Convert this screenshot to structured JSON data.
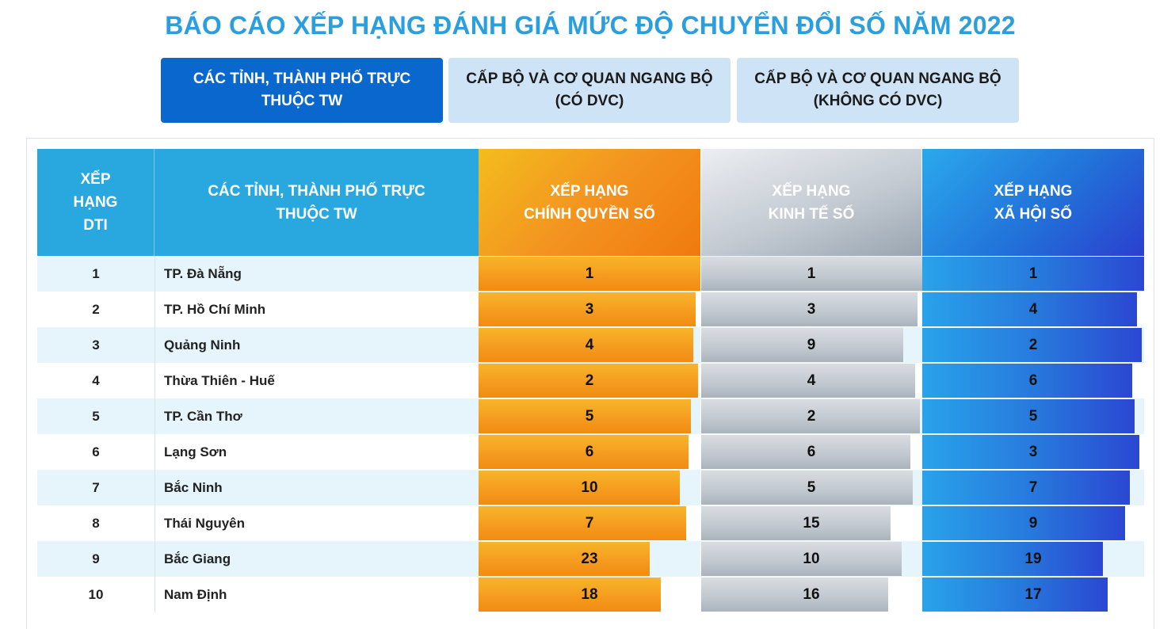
{
  "page": {
    "title": "BÁO CÁO XẾP HẠNG ĐÁNH GIÁ MỨC ĐỘ CHUYỂN ĐỔI SỐ NĂM 2022"
  },
  "tabs": [
    {
      "line1": "CÁC TỈNH, THÀNH PHỐ TRỰC",
      "line2": "THUỘC TW",
      "active": true
    },
    {
      "line1": "CẤP BỘ VÀ CƠ QUAN NGANG BỘ",
      "line2": "(CÓ DVC)",
      "active": false
    },
    {
      "line1": "CẤP BỘ VÀ CƠ QUAN NGANG BỘ",
      "line2": "(KHÔNG CÓ DVC)",
      "active": false
    }
  ],
  "table": {
    "headers": {
      "rank": [
        "XẾP",
        "HẠNG",
        "DTI"
      ],
      "name": [
        "CÁC TỈNH, THÀNH PHỐ TRỰC",
        "THUỘC TW"
      ],
      "chinh_quyen_so": [
        "XẾP HẠNG",
        "CHÍNH QUYỀN SỐ"
      ],
      "kinh_te_so": [
        "XẾP HẠNG",
        "KINH TẾ SỐ"
      ],
      "xa_hoi_so": [
        "XẾP HẠNG",
        "XÃ HỘI SỐ"
      ]
    },
    "colors": {
      "header_blue": "#29a8e0",
      "chinh_quyen_so": "#f39420",
      "kinh_te_so": "#c0c7cf",
      "xa_hoi_so": "#2777dc",
      "active_tab": "#0a67cd",
      "inactive_tab": "#cfe3f6"
    },
    "rows": [
      {
        "rank": "1",
        "name": "TP. Đà Nẵng",
        "cq": "1",
        "kt": "1",
        "xh": "1",
        "cq_fill": 1.0,
        "kt_fill": 1.0,
        "xh_fill": 1.0
      },
      {
        "rank": "2",
        "name": "TP. Hồ Chí Minh",
        "cq": "3",
        "kt": "3",
        "xh": "4",
        "cq_fill": 0.979,
        "kt_fill": 0.979,
        "xh_fill": 0.968
      },
      {
        "rank": "3",
        "name": "Quảng Ninh",
        "cq": "4",
        "kt": "9",
        "xh": "2",
        "cq_fill": 0.968,
        "kt_fill": 0.914,
        "xh_fill": 0.989
      },
      {
        "rank": "4",
        "name": "Thừa Thiên - Huế",
        "cq": "2",
        "kt": "4",
        "xh": "6",
        "cq_fill": 0.989,
        "kt_fill": 0.968,
        "xh_fill": 0.946
      },
      {
        "rank": "5",
        "name": "TP. Cần Thơ",
        "cq": "5",
        "kt": "2",
        "xh": "5",
        "cq_fill": 0.957,
        "kt_fill": 0.989,
        "xh_fill": 0.957
      },
      {
        "rank": "6",
        "name": "Lạng Sơn",
        "cq": "6",
        "kt": "6",
        "xh": "3",
        "cq_fill": 0.946,
        "kt_fill": 0.946,
        "xh_fill": 0.979
      },
      {
        "rank": "7",
        "name": "Bắc Ninh",
        "cq": "10",
        "kt": "5",
        "xh": "7",
        "cq_fill": 0.907,
        "kt_fill": 0.957,
        "xh_fill": 0.936
      },
      {
        "rank": "8",
        "name": "Thái Nguyên",
        "cq": "7",
        "kt": "15",
        "xh": "9",
        "cq_fill": 0.936,
        "kt_fill": 0.857,
        "xh_fill": 0.914
      },
      {
        "rank": "9",
        "name": "Bắc Giang",
        "cq": "23",
        "kt": "10",
        "xh": "19",
        "cq_fill": 0.771,
        "kt_fill": 0.907,
        "xh_fill": 0.814
      },
      {
        "rank": "10",
        "name": "Nam Định",
        "cq": "18",
        "kt": "16",
        "xh": "17",
        "cq_fill": 0.821,
        "kt_fill": 0.846,
        "xh_fill": 0.836
      }
    ]
  }
}
